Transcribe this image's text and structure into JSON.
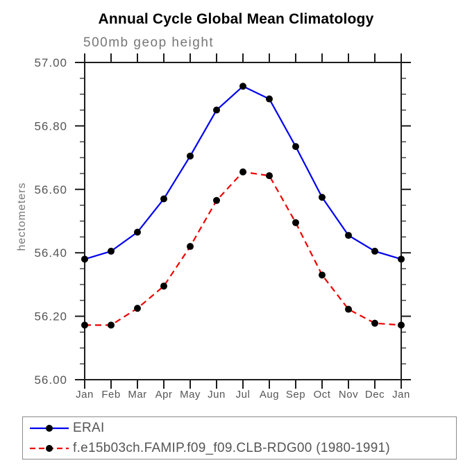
{
  "chart_data": {
    "type": "line",
    "title": "Annual Cycle Global Mean Climatology",
    "subtitle": "500mb geop height",
    "ylabel": "hectometers",
    "categories": [
      "Jan",
      "Feb",
      "Mar",
      "Apr",
      "May",
      "Jun",
      "Jul",
      "Aug",
      "Sep",
      "Oct",
      "Nov",
      "Dec",
      "Jan"
    ],
    "series": [
      {
        "name": "ERAI",
        "color": "#0000ee",
        "line_style": "solid",
        "marker": "filled-circle",
        "marker_color": "#000000",
        "values": [
          56.38,
          56.405,
          56.465,
          56.57,
          56.705,
          56.85,
          56.925,
          56.885,
          56.735,
          56.575,
          56.455,
          56.405,
          56.38
        ]
      },
      {
        "name": "f.e15b03ch.FAMIP.f09_f09.CLB-RDG00 (1980-1991)",
        "color": "#ee0000",
        "line_style": "dashed",
        "marker": "filled-circle",
        "marker_color": "#000000",
        "values": [
          56.172,
          56.172,
          56.225,
          56.295,
          56.42,
          56.565,
          56.655,
          56.643,
          56.495,
          56.33,
          56.222,
          56.178,
          56.172
        ]
      }
    ],
    "ylim": [
      56.0,
      57.0
    ],
    "ytick_step": 0.2,
    "yminor_step": 0.05,
    "ytick_format": "2dp",
    "ytick_labels": [
      "56.00",
      "56.20",
      "56.40",
      "56.60",
      "56.80",
      "57.00"
    ],
    "grid": false,
    "legend_position": "bottom-box",
    "axis_color": "#1c1c1c",
    "label_color": "#555555"
  }
}
